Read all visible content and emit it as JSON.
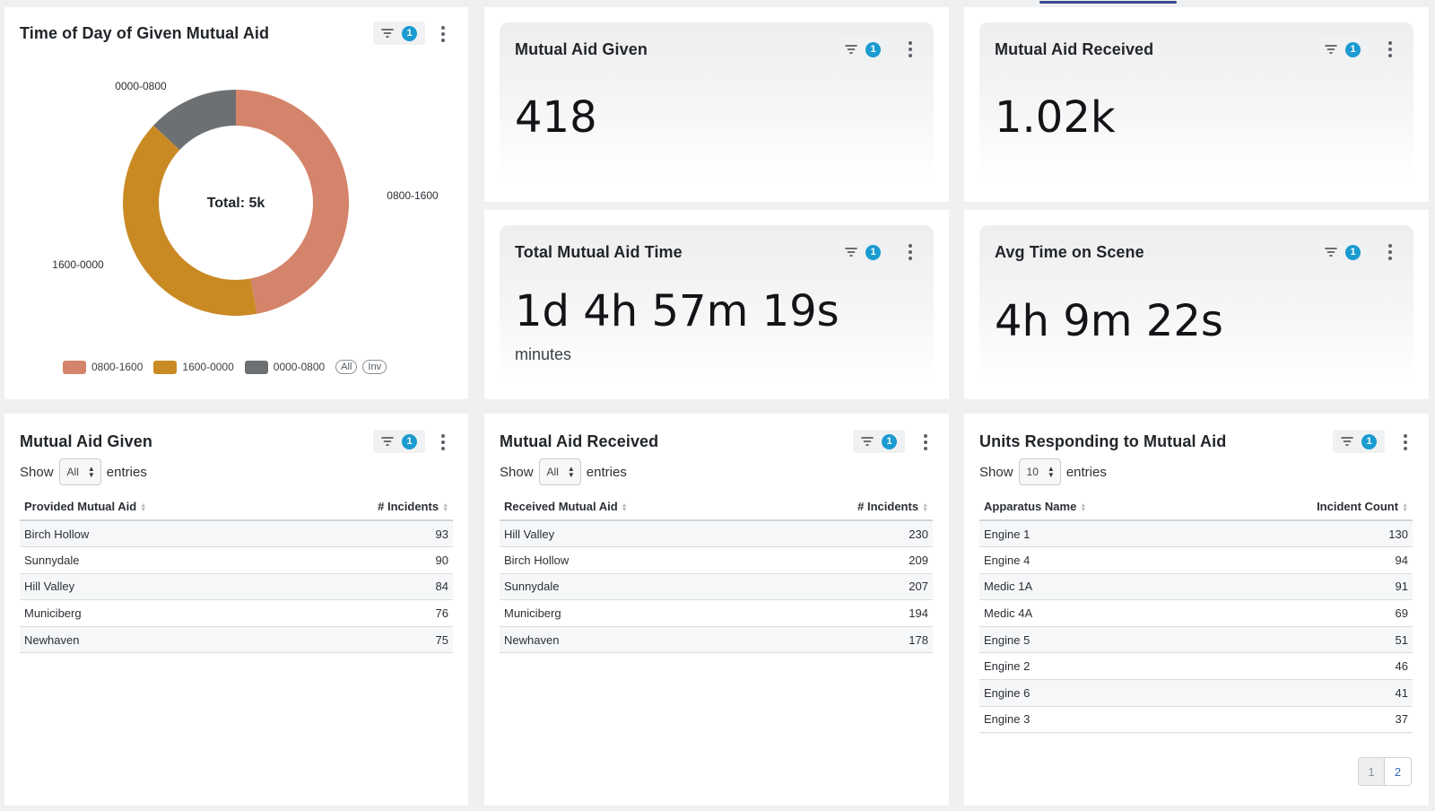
{
  "filter_badge_count": "1",
  "donut_panel": {
    "title": "Time of Day of Given Mutual Aid",
    "center_label": "Total: 5k",
    "legend_all": "All",
    "legend_inv": "Inv",
    "chart_data": {
      "type": "pie",
      "title": "Time of Day of Given Mutual Aid",
      "categories": [
        "0800-1600",
        "1600-0000",
        "0000-0800"
      ],
      "values": [
        0.47,
        0.4,
        0.13
      ],
      "colors": [
        "#d4846a",
        "#c98a24",
        "#6d7073"
      ],
      "legend": "bottom"
    }
  },
  "stats": {
    "given": {
      "title": "Mutual Aid Given",
      "value": "418"
    },
    "received": {
      "title": "Mutual Aid Received",
      "value": "1.02k"
    },
    "total_time": {
      "title": "Total Mutual Aid Time",
      "value": "1d 4h 57m 19s",
      "unit": "minutes"
    },
    "avg_time": {
      "title": "Avg Time on Scene",
      "value": "4h 9m 22s"
    }
  },
  "tables": {
    "show_label": "Show",
    "entries_label": "entries",
    "given": {
      "title": "Mutual Aid Given",
      "page_size": "All",
      "col1": "Provided Mutual Aid",
      "col2": "# Incidents",
      "rows": [
        {
          "name": "Birch Hollow",
          "count": "93"
        },
        {
          "name": "Sunnydale",
          "count": "90"
        },
        {
          "name": "Hill Valley",
          "count": "84"
        },
        {
          "name": "Municiberg",
          "count": "76"
        },
        {
          "name": "Newhaven",
          "count": "75"
        }
      ]
    },
    "received": {
      "title": "Mutual Aid Received",
      "page_size": "All",
      "col1": "Received Mutual Aid",
      "col2": "# Incidents",
      "rows": [
        {
          "name": "Hill Valley",
          "count": "230"
        },
        {
          "name": "Birch Hollow",
          "count": "209"
        },
        {
          "name": "Sunnydale",
          "count": "207"
        },
        {
          "name": "Municiberg",
          "count": "194"
        },
        {
          "name": "Newhaven",
          "count": "178"
        }
      ]
    },
    "units": {
      "title": "Units Responding to Mutual Aid",
      "page_size": "10",
      "col1": "Apparatus Name",
      "col2": "Incident Count",
      "rows": [
        {
          "name": "Engine 1",
          "count": "130"
        },
        {
          "name": "Engine 4",
          "count": "94"
        },
        {
          "name": "Medic 1A",
          "count": "91"
        },
        {
          "name": "Medic 4A",
          "count": "69"
        },
        {
          "name": "Engine 5",
          "count": "51"
        },
        {
          "name": "Engine 2",
          "count": "46"
        },
        {
          "name": "Engine 6",
          "count": "41"
        },
        {
          "name": "Engine 3",
          "count": "37"
        }
      ],
      "pages": [
        "1",
        "2"
      ]
    }
  },
  "icons": {
    "filter": "filter-icon",
    "menu": "kebab-menu-icon",
    "sort": "sort-icon"
  }
}
